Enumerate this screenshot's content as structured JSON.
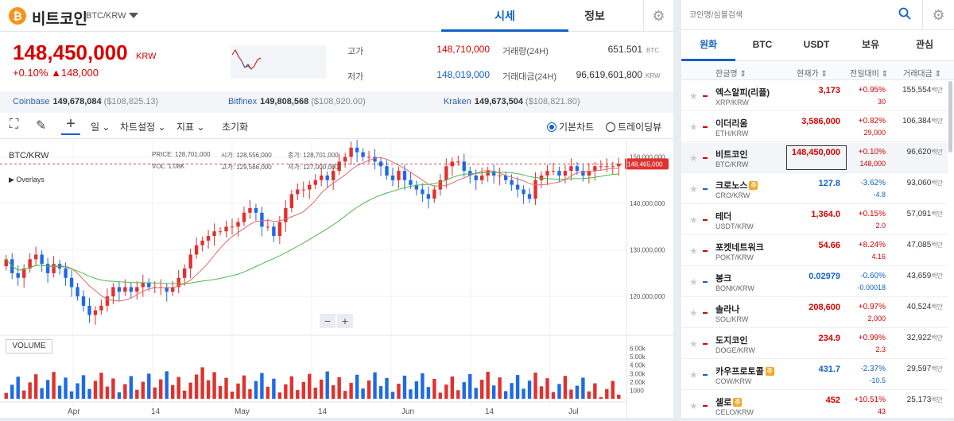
{
  "header": {
    "coin_logo": "₿",
    "coin_name": "비트코인",
    "pair": "BTC/KRW",
    "tabs": [
      "시세",
      "정보"
    ],
    "active_tab": 0
  },
  "price": {
    "current": "148,450,000",
    "unit": "KRW",
    "change": "+0.10%  ▲148,000",
    "high_label": "고가",
    "high": "148,710,000",
    "low_label": "저가",
    "low": "148,019,000",
    "vol_label": "거래량(24H)",
    "vol": "651.501",
    "vol_unit": "BTC",
    "amt_label": "거래대금(24H)",
    "amt": "96,619,601,800",
    "amt_unit": "KRW"
  },
  "exchanges": [
    {
      "name": "Coinbase",
      "value": "149,678,084",
      "usd": "($108,825.13)"
    },
    {
      "name": "Bitfinex",
      "value": "149,808,568",
      "usd": "($108,920.00)"
    },
    {
      "name": "Kraken",
      "value": "149,673,504",
      "usd": "($108,821.80)"
    }
  ],
  "toolbar": {
    "interval": "일",
    "chart_settings": "차트설정",
    "indicators": "지표",
    "reset": "초기화",
    "basic_chart": "기본차트",
    "tradingview": "트레이딩뷰"
  },
  "chart_panel": {
    "pair": "BTC/KRW",
    "overlays": "Overlays",
    "volume_label": "VOLUME",
    "ohlc": {
      "price_label": "PRICE:",
      "price": "128,701,000",
      "open_label": "시가:",
      "open": "128,556,000",
      "close_label": "종가:",
      "close": "128,701,000",
      "vol_label": "VOL:",
      "vol": "1.08K",
      "high_label": "고가:",
      "high": "129,566,000",
      "low_label": "저가:",
      "low": "127,000,000"
    },
    "price_tag": "148,465,000",
    "zoom_minus": "−",
    "zoom_plus": "+"
  },
  "chart_data": {
    "type": "candlestick",
    "x_tick_labels": [
      "Apr",
      "14",
      "May",
      "14",
      "Jun",
      "14",
      "Jul"
    ],
    "y_tick_labels": [
      "150,000,000",
      "140,000,000",
      "130,000,000",
      "120,000,000"
    ],
    "y_ticks": [
      150000000,
      140000000,
      130000000,
      120000000
    ],
    "ylim": [
      112000000,
      153000000
    ],
    "volume_tick_labels": [
      "6.00k",
      "5.00k",
      "4.00k",
      "3.00k",
      "2.00k",
      "1000"
    ],
    "volume_ticks": [
      6000,
      5000,
      4000,
      3000,
      2000,
      1000
    ],
    "volume_ylim": [
      0,
      7000
    ],
    "close_approx": [
      128,
      125,
      124,
      126,
      128,
      129,
      127,
      125,
      127,
      126,
      124,
      122,
      120,
      118,
      116,
      117,
      118,
      120,
      122,
      121,
      122,
      121,
      122,
      123,
      122,
      122,
      122,
      121,
      122,
      124,
      126,
      129,
      131,
      132,
      133,
      134,
      134,
      135,
      135,
      136,
      138,
      139,
      138,
      135,
      135,
      133,
      136,
      139,
      142,
      143,
      143,
      144,
      145,
      146,
      145,
      147,
      149,
      150,
      152,
      151,
      150,
      150,
      149,
      148,
      146,
      145,
      147,
      145,
      144,
      143,
      142,
      141,
      143,
      145,
      148,
      149,
      149,
      147,
      146,
      145,
      146,
      147,
      146,
      146,
      145,
      144,
      143,
      142,
      141,
      145,
      146,
      147,
      147,
      146,
      147,
      148,
      147,
      146,
      147,
      148,
      148,
      148,
      148,
      148.5
    ],
    "ma_short": "red",
    "ma_long": "green",
    "up_color": "#e0312e",
    "down_color": "#1e6ae6"
  },
  "market": {
    "search_placeholder": "코인명/심볼검색",
    "tabs": [
      "원화",
      "BTC",
      "USDT",
      "보유",
      "관심"
    ],
    "active_tab": 0,
    "columns": [
      "한글명 ⇕",
      "현재가 ⇕",
      "전일대비 ⇕",
      "거래대금 ⇕"
    ],
    "rows": [
      {
        "name": "엑스알피(리플)",
        "symbol": "XRP/KRW",
        "price": "3,173",
        "pct": "+0.95%",
        "chg": "30",
        "vol": "155,554",
        "unit": "백만",
        "dir": "up",
        "badge": ""
      },
      {
        "name": "이더리움",
        "symbol": "ETH/KRW",
        "price": "3,586,000",
        "pct": "+0.82%",
        "chg": "29,000",
        "vol": "106,384",
        "unit": "백만",
        "dir": "up",
        "badge": ""
      },
      {
        "name": "비트코인",
        "symbol": "BTC/KRW",
        "price": "148,450,000",
        "pct": "+0.10%",
        "chg": "148,000",
        "vol": "96,620",
        "unit": "백만",
        "dir": "up",
        "badge": ""
      },
      {
        "name": "크로노스",
        "symbol": "CRO/KRW",
        "price": "127.8",
        "pct": "-3.62%",
        "chg": "-4.8",
        "vol": "93,060",
        "unit": "백만",
        "dir": "dn",
        "badge": "주"
      },
      {
        "name": "테더",
        "symbol": "USDT/KRW",
        "price": "1,364.0",
        "pct": "+0.15%",
        "chg": "2.0",
        "vol": "57,091",
        "unit": "백만",
        "dir": "up",
        "badge": ""
      },
      {
        "name": "포켓네트워크",
        "symbol": "POKT/KRW",
        "price": "54.66",
        "pct": "+8.24%",
        "chg": "4.16",
        "vol": "47,085",
        "unit": "백만",
        "dir": "up",
        "badge": ""
      },
      {
        "name": "봉크",
        "symbol": "BONK/KRW",
        "price": "0.02979",
        "pct": "-0.60%",
        "chg": "-0.00018",
        "vol": "43,659",
        "unit": "백만",
        "dir": "dn",
        "badge": ""
      },
      {
        "name": "솔라나",
        "symbol": "SOL/KRW",
        "price": "208,600",
        "pct": "+0.97%",
        "chg": "2,000",
        "vol": "40,524",
        "unit": "백만",
        "dir": "up",
        "badge": ""
      },
      {
        "name": "도지코인",
        "symbol": "DOGE/KRW",
        "price": "234.9",
        "pct": "+0.99%",
        "chg": "2.3",
        "vol": "32,922",
        "unit": "백만",
        "dir": "up",
        "badge": ""
      },
      {
        "name": "카우프로토콜",
        "symbol": "COW/KRW",
        "price": "431.7",
        "pct": "-2.37%",
        "chg": "-10.5",
        "vol": "29,597",
        "unit": "백만",
        "dir": "dn",
        "badge": "주"
      },
      {
        "name": "셀로",
        "symbol": "CELO/KRW",
        "price": "452",
        "pct": "+10.51%",
        "chg": "43",
        "vol": "25,173",
        "unit": "백만",
        "dir": "up",
        "badge": "주"
      }
    ]
  },
  "icons": {
    "gear": "⚙",
    "star": "★",
    "fullscreen": "⛶",
    "pen": "✎",
    "crosshair": "+"
  }
}
